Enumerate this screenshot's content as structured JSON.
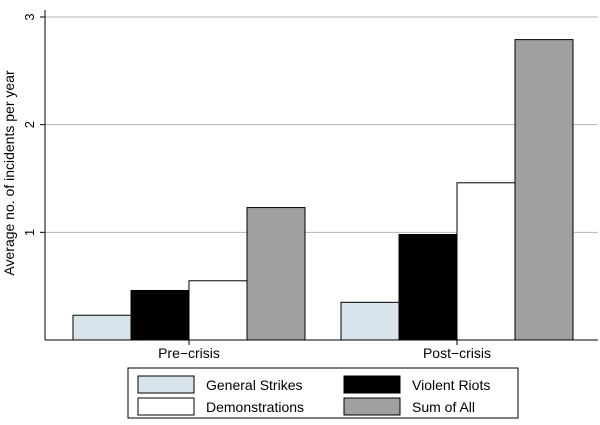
{
  "chart_data": {
    "type": "bar",
    "title": "",
    "xlabel": "",
    "ylabel": "Average no. of incidents per year",
    "ylim": [
      0,
      3
    ],
    "yticks": [
      1,
      2,
      3
    ],
    "grid": true,
    "legend_position": "bottom",
    "categories": [
      "Pre−crisis",
      "Post−crisis"
    ],
    "series": [
      {
        "name": "General Strikes",
        "color": "#d7e4ec",
        "values": [
          0.23,
          0.35
        ]
      },
      {
        "name": "Violent Riots",
        "color": "#000000",
        "values": [
          0.46,
          0.98
        ]
      },
      {
        "name": "Demonstrations",
        "color": "#ffffff",
        "values": [
          0.55,
          1.46
        ]
      },
      {
        "name": "Sum of All",
        "color": "#a0a0a0",
        "values": [
          1.23,
          2.79
        ]
      }
    ]
  }
}
